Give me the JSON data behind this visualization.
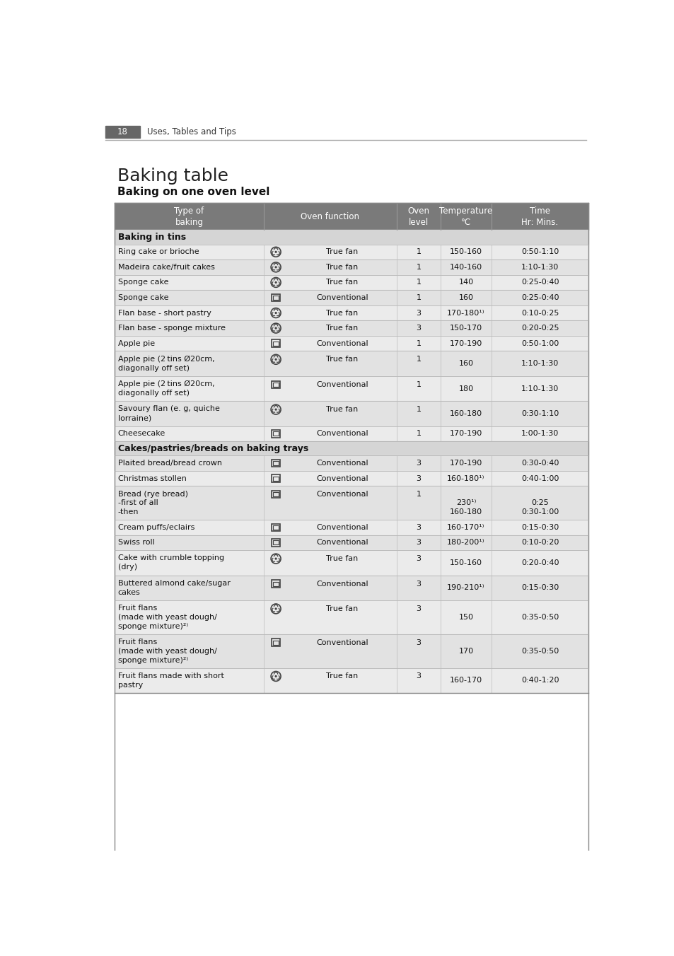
{
  "page_number": "18",
  "page_header": "Uses, Tables and Tips",
  "title": "Baking table",
  "subtitle": "Baking on one oven level",
  "col_headers": [
    "Type of\nbaking",
    "Oven function",
    "Oven\nlevel",
    "Temperature\n°C",
    "Time\nHr: Mins."
  ],
  "sections": [
    {
      "section_title": "Baking in tins",
      "rows": [
        {
          "type": "Ring cake or brioche",
          "icon": "fan",
          "function": "True fan",
          "level": "1",
          "temp": "150-160",
          "time": "0:50-1:10"
        },
        {
          "type": "Madeira cake/fruit cakes",
          "icon": "fan",
          "function": "True fan",
          "level": "1",
          "temp": "140-160",
          "time": "1:10-1:30"
        },
        {
          "type": "Sponge cake",
          "icon": "fan",
          "function": "True fan",
          "level": "1",
          "temp": "140",
          "time": "0:25-0:40"
        },
        {
          "type": "Sponge cake",
          "icon": "conv",
          "function": "Conventional",
          "level": "1",
          "temp": "160",
          "time": "0:25-0:40"
        },
        {
          "type": "Flan base - short pastry",
          "icon": "fan",
          "function": "True fan",
          "level": "3",
          "temp": "170-180¹⁾",
          "time": "0:10-0:25"
        },
        {
          "type": "Flan base - sponge mixture",
          "icon": "fan",
          "function": "True fan",
          "level": "3",
          "temp": "150-170",
          "time": "0:20-0:25"
        },
        {
          "type": "Apple pie",
          "icon": "conv",
          "function": "Conventional",
          "level": "1",
          "temp": "170-190",
          "time": "0:50-1:00"
        },
        {
          "type": "Apple pie (2 tins Ø20cm,\ndiagonally off set)",
          "icon": "fan",
          "function": "True fan",
          "level": "1",
          "temp": "160",
          "time": "1:10-1:30"
        },
        {
          "type": "Apple pie (2 tins Ø20cm,\ndiagonally off set)",
          "icon": "conv",
          "function": "Conventional",
          "level": "1",
          "temp": "180",
          "time": "1:10-1:30"
        },
        {
          "type": "Savoury flan (e. g, quiche\nlorraine)",
          "icon": "fan",
          "function": "True fan",
          "level": "1",
          "temp": "160-180",
          "time": "0:30-1:10"
        },
        {
          "type": "Cheesecake",
          "icon": "conv",
          "function": "Conventional",
          "level": "1",
          "temp": "170-190",
          "time": "1:00-1:30"
        }
      ]
    },
    {
      "section_title": "Cakes/pastries/breads on baking trays",
      "rows": [
        {
          "type": "Plaited bread/bread crown",
          "icon": "conv",
          "function": "Conventional",
          "level": "3",
          "temp": "170-190",
          "time": "0:30-0:40"
        },
        {
          "type": "Christmas stollen",
          "icon": "conv",
          "function": "Conventional",
          "level": "3",
          "temp": "160-180¹⁾",
          "time": "0:40-1:00"
        },
        {
          "type": "Bread (rye bread)\n-first of all\n-then",
          "icon": "conv",
          "function": "Conventional",
          "level": "1",
          "temp": "\n230¹⁾\n160-180",
          "time": "\n0:25\n0:30-1:00"
        },
        {
          "type": "Cream puffs/eclairs",
          "icon": "conv",
          "function": "Conventional",
          "level": "3",
          "temp": "160-170¹⁾",
          "time": "0:15-0:30"
        },
        {
          "type": "Swiss roll",
          "icon": "conv",
          "function": "Conventional",
          "level": "3",
          "temp": "180-200¹⁾",
          "time": "0:10-0:20"
        },
        {
          "type": "Cake with crumble topping\n(dry)",
          "icon": "fan",
          "function": "True fan",
          "level": "3",
          "temp": "150-160",
          "time": "0:20-0:40"
        },
        {
          "type": "Buttered almond cake/sugar\ncakes",
          "icon": "conv",
          "function": "Conventional",
          "level": "3",
          "temp": "190-210¹⁾",
          "time": "0:15-0:30"
        },
        {
          "type": "Fruit flans\n(made with yeast dough/\nsponge mixture)²⁾",
          "icon": "fan",
          "function": "True fan",
          "level": "3",
          "temp": "150",
          "time": "0:35-0:50"
        },
        {
          "type": "Fruit flans\n(made with yeast dough/\nsponge mixture)²⁾",
          "icon": "conv",
          "function": "Conventional",
          "level": "3",
          "temp": "170",
          "time": "0:35-0:50"
        },
        {
          "type": "Fruit flans made with short\npastry",
          "icon": "fan",
          "function": "True fan",
          "level": "3",
          "temp": "160-170",
          "time": "0:40-1:20"
        }
      ]
    }
  ]
}
